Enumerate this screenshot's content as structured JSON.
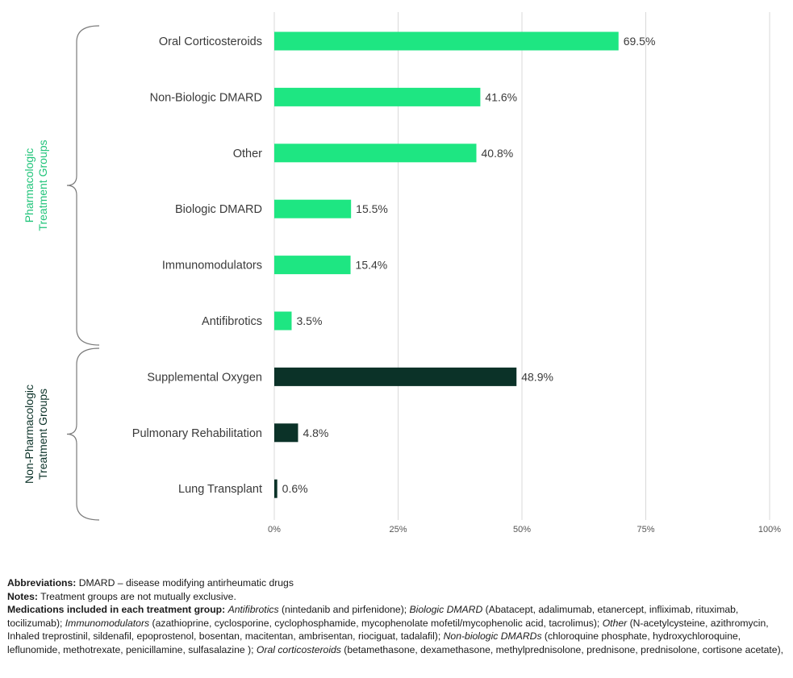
{
  "chart_data": {
    "type": "bar",
    "orientation": "horizontal",
    "categories": [
      "Oral Corticosteroids",
      "Non-Biologic DMARD",
      "Other",
      "Biologic DMARD",
      "Immunomodulators",
      "Antifibrotics",
      "Supplemental Oxygen",
      "Pulmonary Rehabilitation",
      "Lung Transplant"
    ],
    "values": [
      69.5,
      41.6,
      40.8,
      15.5,
      15.4,
      3.5,
      48.9,
      4.8,
      0.6
    ],
    "value_labels": [
      "69.5%",
      "41.6%",
      "40.8%",
      "15.5%",
      "15.4%",
      "3.5%",
      "48.9%",
      "4.8%",
      "0.6%"
    ],
    "groups": [
      {
        "name": "Pharmacologic Treatment Groups",
        "lines": [
          "Pharmacologic",
          "Treatment Groups"
        ],
        "color": "#1ee682",
        "label_color": "#21c47a",
        "categories": [
          0,
          1,
          2,
          3,
          4,
          5
        ]
      },
      {
        "name": "Non-Pharmacologic Treatment Groups",
        "lines": [
          "Non-Pharmacologic",
          "Treatment Groups"
        ],
        "color": "#0b3228",
        "label_color": "#0b3228",
        "categories": [
          6,
          7,
          8
        ]
      }
    ],
    "xlim": [
      0,
      100
    ],
    "xticks": [
      0,
      25,
      50,
      75,
      100
    ],
    "xtick_labels": [
      "0%",
      "25%",
      "50%",
      "75%",
      "100%"
    ],
    "grid": true,
    "xlabel": "",
    "ylabel": "",
    "title": ""
  },
  "footnotes": {
    "abbreviations_label": "Abbreviations:",
    "abbreviations_text": "DMARD – disease modifying antirheumatic drugs",
    "notes_label": "Notes:",
    "notes_text": "Treatment groups are not mutually exclusive.",
    "medications_label": "Medications included in each treatment group:",
    "medications": [
      {
        "name": "Antifibrotics",
        "drugs": "(nintedanib and pirfenidone); "
      },
      {
        "name": "Biologic DMARD",
        "drugs": "(Abatacept, adalimumab, etanercept, infliximab, rituximab, tocilizumab); "
      },
      {
        "name": "Immunomodulators",
        "drugs": "(azathioprine, cyclosporine, cyclophosphamide, mycophenolate mofetil/mycophenolic acid, tacrolimus); "
      },
      {
        "name": "Other",
        "drugs": "(N-acetylcysteine, azithromycin, Inhaled treprostinil, sildenafil, epoprostenol, bosentan, macitentan, ambrisentan, riociguat, tadalafil); "
      },
      {
        "name": "Non-biologic DMARDs",
        "drugs": "(chloroquine phosphate, hydroxychloroquine, leflunomide, methotrexate, penicillamine, sulfasalazine ); "
      },
      {
        "name": "Oral corticosteroids",
        "drugs": "(betamethasone, dexamethasone, methylprednisolone, prednisone, prednisolone, cortisone acetate),"
      }
    ]
  }
}
